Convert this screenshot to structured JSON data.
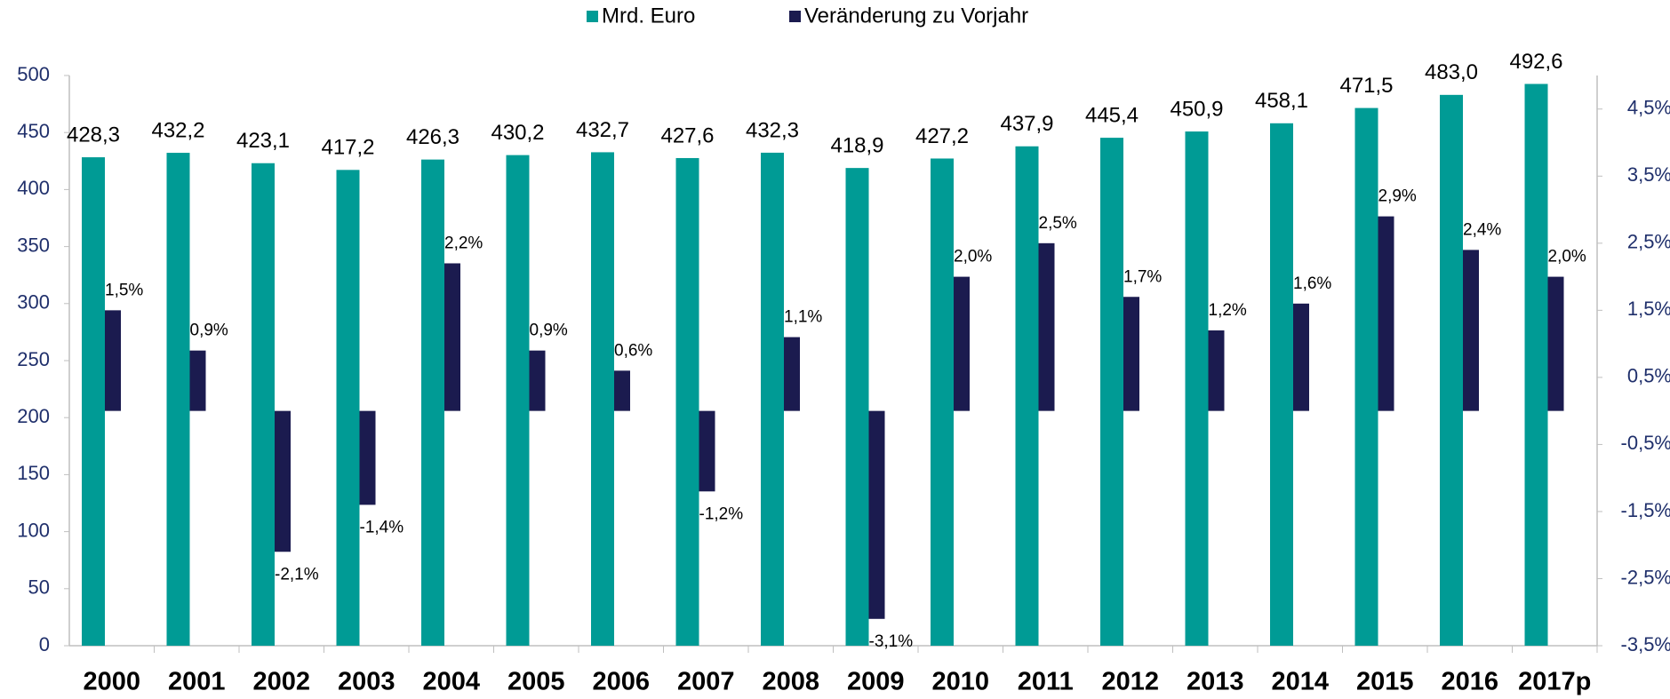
{
  "chart_data": {
    "type": "bar",
    "categories": [
      "2000",
      "2001",
      "2002",
      "2003",
      "2004",
      "2005",
      "2006",
      "2007",
      "2008",
      "2009",
      "2010",
      "2011",
      "2012",
      "2013",
      "2014",
      "2015",
      "2016",
      "2017p"
    ],
    "series": [
      {
        "name": "Mrd. Euro",
        "color": "#009b95",
        "values": [
          428.3,
          432.2,
          423.1,
          417.2,
          426.3,
          430.2,
          432.7,
          427.6,
          432.3,
          418.9,
          427.2,
          437.9,
          445.4,
          450.9,
          458.1,
          471.5,
          483.0,
          492.6
        ],
        "value_labels": [
          "428,3",
          "432,2",
          "423,1",
          "417,2",
          "426,3",
          "430,2",
          "432,7",
          "427,6",
          "432,3",
          "418,9",
          "427,2",
          "437,9",
          "445,4",
          "450,9",
          "458,1",
          "471,5",
          "483,0",
          "492,6"
        ]
      },
      {
        "name": "Veränderung zu Vorjahr",
        "color": "#1b1b4f",
        "axis": "y2",
        "values": [
          1.5,
          0.9,
          -2.1,
          -1.4,
          2.2,
          0.9,
          0.6,
          -1.2,
          1.1,
          -3.1,
          2.0,
          2.5,
          1.7,
          1.2,
          1.6,
          2.9,
          2.4,
          2.0
        ],
        "value_labels": [
          "1,5%",
          "0,9%",
          "-2,1%",
          "-1,4%",
          "2,2%",
          "0,9%",
          "0,6%",
          "-1,2%",
          "1,1%",
          "-3,1%",
          "2,0%",
          "2,5%",
          "1,7%",
          "1,2%",
          "1,6%",
          "2,9%",
          "2,4%",
          "2,0%"
        ]
      }
    ],
    "ylim": [
      0,
      500
    ],
    "yticks": [
      0,
      50,
      100,
      150,
      200,
      250,
      300,
      350,
      400,
      450,
      500
    ],
    "y2lim": [
      -3.5,
      5.0
    ],
    "y2ticks": [
      {
        "value": -3.5,
        "label": "-3,5%"
      },
      {
        "value": -2.5,
        "label": "-2,5%"
      },
      {
        "value": -1.5,
        "label": "-1,5%"
      },
      {
        "value": -0.5,
        "label": "-0,5%"
      },
      {
        "value": 0.5,
        "label": "0,5%"
      },
      {
        "value": 1.5,
        "label": "1,5%"
      },
      {
        "value": 2.5,
        "label": "2,5%"
      },
      {
        "value": 3.5,
        "label": "3,5%"
      },
      {
        "value": 4.5,
        "label": "4,5%"
      }
    ],
    "legend": "top"
  }
}
